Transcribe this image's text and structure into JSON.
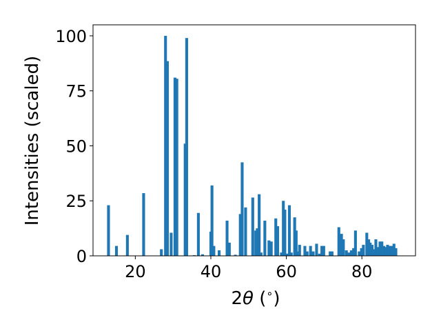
{
  "chart_data": {
    "type": "bar",
    "xlabel": "2θ (°)",
    "xlabel_parts": {
      "pre": "2",
      "theta": "θ",
      "open": " (",
      "degree": "∘",
      "close": ")"
    },
    "ylabel": "Intensities (scaled)",
    "xlim": [
      8.8,
      94.2
    ],
    "ylim": [
      0,
      105
    ],
    "xticks": [
      20,
      40,
      60,
      80
    ],
    "yticks": [
      0,
      25,
      50,
      75,
      100
    ],
    "bar_width": 0.75,
    "color": "#1f77b4",
    "grid": false,
    "legend": "none",
    "series": [
      {
        "points": [
          [
            12.9,
            23
          ],
          [
            15.0,
            4.5
          ],
          [
            17.9,
            9.5
          ],
          [
            22.2,
            28.5
          ],
          [
            26.9,
            3
          ],
          [
            28.0,
            100
          ],
          [
            28.5,
            88.5
          ],
          [
            29.5,
            10.5
          ],
          [
            30.5,
            81
          ],
          [
            31.0,
            80.5
          ],
          [
            33.2,
            51
          ],
          [
            33.6,
            99
          ],
          [
            35.6,
            0.3
          ],
          [
            36.7,
            19.5
          ],
          [
            37.8,
            0.7
          ],
          [
            40.0,
            11
          ],
          [
            40.3,
            32
          ],
          [
            40.8,
            4.5
          ],
          [
            42.2,
            2.5
          ],
          [
            44.3,
            16
          ],
          [
            44.9,
            6
          ],
          [
            46.5,
            0.5
          ],
          [
            47.8,
            19
          ],
          [
            48.3,
            42.5
          ],
          [
            49.2,
            22
          ],
          [
            51.1,
            26.5
          ],
          [
            51.9,
            11.5
          ],
          [
            52.3,
            12.5
          ],
          [
            52.8,
            28
          ],
          [
            53.3,
            1.5
          ],
          [
            54.3,
            16
          ],
          [
            55.4,
            7
          ],
          [
            56.0,
            6.5
          ],
          [
            57.2,
            17
          ],
          [
            57.7,
            13.5
          ],
          [
            58.7,
            1.5
          ],
          [
            59.2,
            25
          ],
          [
            59.6,
            21
          ],
          [
            60.3,
            1
          ],
          [
            60.8,
            23
          ],
          [
            61.3,
            1.5
          ],
          [
            62.2,
            17.5
          ],
          [
            62.6,
            11.5
          ],
          [
            63.1,
            2
          ],
          [
            63.5,
            5
          ],
          [
            64.9,
            4.5
          ],
          [
            65.5,
            2
          ],
          [
            66.4,
            4.5
          ],
          [
            67.1,
            2
          ],
          [
            68.0,
            5.5
          ],
          [
            68.8,
            1
          ],
          [
            69.4,
            4.5
          ],
          [
            69.9,
            4.5
          ],
          [
            71.6,
            2
          ],
          [
            72.1,
            2
          ],
          [
            73.9,
            13
          ],
          [
            74.6,
            10
          ],
          [
            75.1,
            7.5
          ],
          [
            75.9,
            2.5
          ],
          [
            76.6,
            1.5
          ],
          [
            77.2,
            2.5
          ],
          [
            77.8,
            3.5
          ],
          [
            78.3,
            11.5
          ],
          [
            79.3,
            2
          ],
          [
            79.9,
            3.5
          ],
          [
            80.4,
            5
          ],
          [
            81.3,
            10.5
          ],
          [
            81.8,
            7.5
          ],
          [
            82.2,
            6
          ],
          [
            82.7,
            5
          ],
          [
            83.1,
            3
          ],
          [
            83.7,
            7.5
          ],
          [
            84.2,
            4
          ],
          [
            84.8,
            6.5
          ],
          [
            85.3,
            6.5
          ],
          [
            85.8,
            4.5
          ],
          [
            86.3,
            4
          ],
          [
            86.8,
            5
          ],
          [
            87.4,
            4.5
          ],
          [
            87.9,
            4.5
          ],
          [
            88.5,
            5.5
          ],
          [
            89.0,
            3.5
          ]
        ]
      }
    ]
  }
}
